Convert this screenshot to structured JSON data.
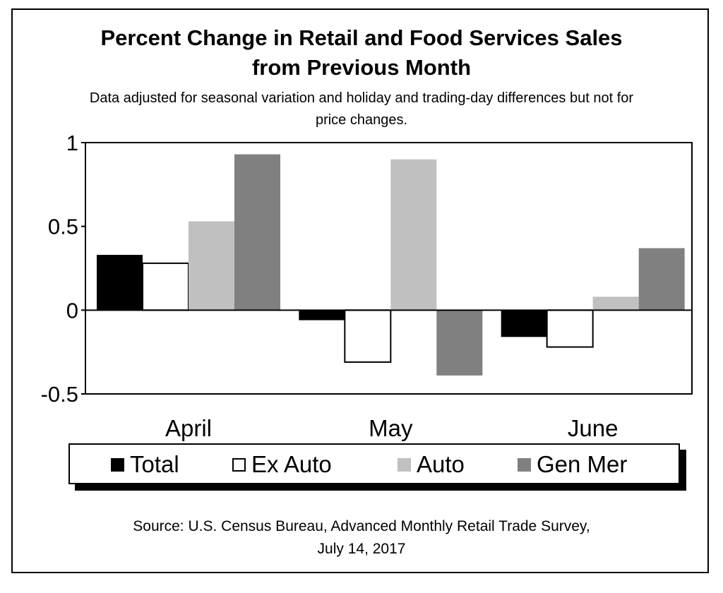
{
  "chart_data": {
    "type": "bar",
    "title": "Percent Change in Retail and Food Services Sales from Previous Month",
    "title_lines": [
      "Percent Change in Retail and Food Services Sales",
      "from Previous Month"
    ],
    "subtitle": "Data adjusted for seasonal variation and holiday and trading-day differences but not for price changes.",
    "subtitle_lines": [
      "Data adjusted for seasonal variation and holiday and trading-day differences but not for",
      "price changes."
    ],
    "categories": [
      "April",
      "May",
      "June"
    ],
    "series": [
      {
        "name": "Total",
        "values": [
          0.33,
          -0.06,
          -0.16
        ],
        "color": "#000000"
      },
      {
        "name": "Ex Auto",
        "values": [
          0.28,
          -0.31,
          -0.22
        ],
        "color": "#ffffff"
      },
      {
        "name": "Auto",
        "values": [
          0.53,
          0.9,
          0.08
        ],
        "color": "#c0c0c0"
      },
      {
        "name": "Gen Mer",
        "values": [
          0.93,
          -0.39,
          0.37
        ],
        "color": "#808080"
      }
    ],
    "ylim": [
      -0.5,
      1
    ],
    "yticks": [
      1,
      0.5,
      0,
      -0.5
    ],
    "ytick_labels": [
      "1",
      "0.5",
      "0",
      "-0.5"
    ],
    "xlabel": "",
    "ylabel": "",
    "legend_position": "bottom",
    "grid": false
  },
  "source_lines": [
    "Source: U.S. Census Bureau, Advanced Monthly Retail Trade Survey,",
    "July 14, 2017"
  ]
}
